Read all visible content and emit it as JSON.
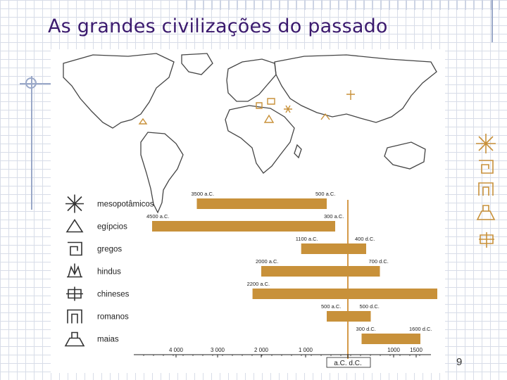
{
  "slide": {
    "title": "As grandes civilizações do passado",
    "page_number": "9"
  },
  "colors": {
    "bar": "#c8913a",
    "axis_line": "#d59a4a",
    "title": "#3b1a6e",
    "icon": "#333333"
  },
  "chart_data": {
    "type": "bar",
    "orientation": "horizontal-range",
    "title": "",
    "categories": [
      "mesopotâmicos",
      "egípcios",
      "gregos",
      "hindus",
      "chineses",
      "romanos",
      "maias"
    ],
    "icons": [
      "sun-star-icon",
      "triangle-icon",
      "greek-key-icon",
      "lotus-icon",
      "chinese-character-icon",
      "roman-arch-icon",
      "mayan-pyramid-icon"
    ],
    "series": [
      {
        "ranges": [
          {
            "start": -3500,
            "end": -500,
            "start_label": "3500 a.C.",
            "end_label": "500 a.C."
          },
          {
            "start": -4500,
            "end": -300,
            "start_label": "4500 a.C.",
            "end_label": "300 a.C."
          },
          {
            "start": -1100,
            "end": 400,
            "start_label": "1100 a.C.",
            "end_label": "400 d.C."
          },
          {
            "start": -2000,
            "end": 700,
            "start_label": "2000 a.C.",
            "end_label": "700 d.C."
          },
          {
            "start": -2200,
            "end": 2000,
            "start_label": "2200 a.C.",
            "end_label": ""
          },
          {
            "start": -500,
            "end": 500,
            "start_label": "500 a.C.",
            "end_label": "500 d.C."
          },
          {
            "start": 300,
            "end": 1600,
            "start_label": "300 d.C.",
            "end_label": "1600 d.C."
          }
        ]
      }
    ],
    "axis": {
      "ticks": [
        -4000,
        -3000,
        -2000,
        -1000,
        0,
        1000,
        1500
      ],
      "tick_labels": [
        "4 000",
        "3 000",
        "2 000",
        "1 000",
        "",
        "1000",
        "1500"
      ],
      "era_labels": [
        "a.C.",
        "d.C."
      ]
    }
  }
}
